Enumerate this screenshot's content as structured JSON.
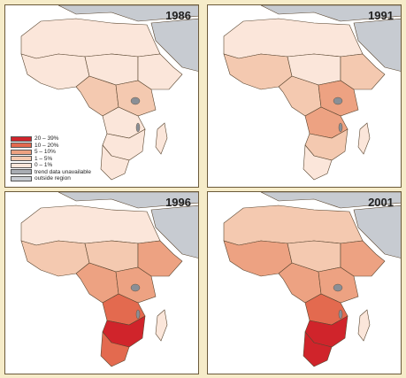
{
  "colors": {
    "c20_39": "#d0242b",
    "c10_20": "#e36a4f",
    "c5_10": "#eda282",
    "c1_5": "#f4c9b0",
    "c0_1": "#fbe6da",
    "unavailable": "#a9adb3",
    "outside": "#c7cbd1",
    "lake": "#8a8f96",
    "border": "#5a4630",
    "ocean": "#ffffff"
  },
  "legend": {
    "items": [
      {
        "label": "20 – 39%",
        "color_key": "c20_39"
      },
      {
        "label": "10 – 20%",
        "color_key": "c10_20"
      },
      {
        "label": "5 – 10%",
        "color_key": "c5_10"
      },
      {
        "label": "1 – 5%",
        "color_key": "c1_5"
      },
      {
        "label": "0 – 1%",
        "color_key": "c0_1"
      },
      {
        "label": "trend data unavailable",
        "color_key": "unavailable"
      },
      {
        "label": "outside region",
        "color_key": "outside"
      }
    ]
  },
  "panels": [
    {
      "year": "1986",
      "regions": {
        "westAfrica": "c0_1",
        "sahel": "c0_1",
        "centralNorth": "c0_1",
        "horn": "c0_1",
        "eastAfrica": "c1_5",
        "centralAfrica": "c1_5",
        "southernCentral": "c0_1",
        "southernAfrica": "c0_1",
        "southernTip": "c0_1",
        "madagascar": "c0_1"
      }
    },
    {
      "year": "1991",
      "regions": {
        "westAfrica": "c1_5",
        "sahel": "c0_1",
        "centralNorth": "c0_1",
        "horn": "c1_5",
        "eastAfrica": "c5_10",
        "centralAfrica": "c1_5",
        "southernCentral": "c5_10",
        "southernAfrica": "c1_5",
        "southernTip": "c0_1",
        "madagascar": "c0_1"
      }
    },
    {
      "year": "1996",
      "regions": {
        "westAfrica": "c1_5",
        "sahel": "c0_1",
        "centralNorth": "c1_5",
        "horn": "c5_10",
        "eastAfrica": "c5_10",
        "centralAfrica": "c5_10",
        "southernCentral": "c10_20",
        "southernAfrica": "c20_39",
        "southernTip": "c10_20",
        "madagascar": "c0_1"
      }
    },
    {
      "year": "2001",
      "regions": {
        "westAfrica": "c5_10",
        "sahel": "c1_5",
        "centralNorth": "c1_5",
        "horn": "c5_10",
        "eastAfrica": "c5_10",
        "centralAfrica": "c5_10",
        "southernCentral": "c10_20",
        "southernAfrica": "c20_39",
        "southernTip": "c20_39",
        "madagascar": "c0_1"
      }
    }
  ]
}
